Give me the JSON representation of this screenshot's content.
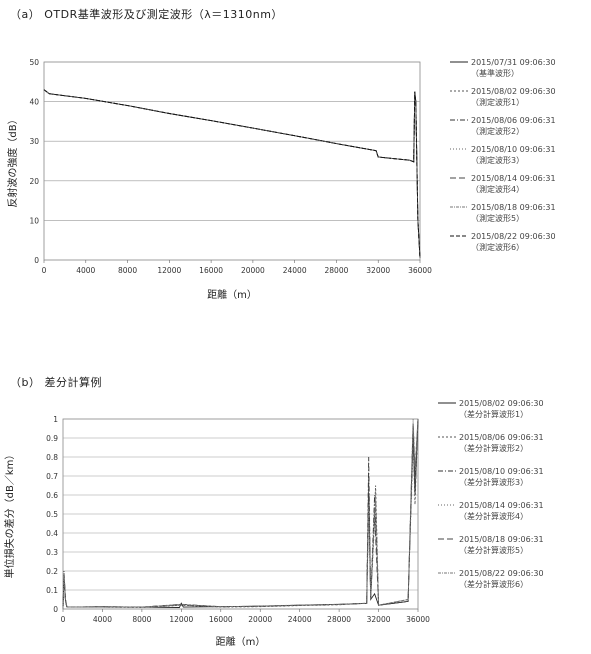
{
  "titles": {
    "a": "（a）  OTDR基準波形及び測定波形（λ＝1310nm）",
    "b": "（b）  差分計算例"
  },
  "chart_data": [
    {
      "type": "line",
      "xlabel": "距離（m）",
      "ylabel": "反射波の強度（dB）",
      "xlim": [
        0,
        36000
      ],
      "ylim": [
        0,
        50
      ],
      "x_ticks": [
        "0",
        "4000",
        "8000",
        "12000",
        "16000",
        "20000",
        "24000",
        "28000",
        "32000",
        "36000"
      ],
      "y_ticks": [
        "0",
        "10",
        "20",
        "30",
        "40",
        "50"
      ],
      "grid": true,
      "legend_position": "right",
      "series": [
        {
          "name": "2015/07/31 09:06:30（基準波形）",
          "points": [
            [
              0,
              43
            ],
            [
              500,
              42
            ],
            [
              4000,
              40.8
            ],
            [
              8000,
              39
            ],
            [
              12000,
              37
            ],
            [
              16000,
              35.2
            ],
            [
              20000,
              33.3
            ],
            [
              24000,
              31.4
            ],
            [
              28000,
              29.4
            ],
            [
              31800,
              27.6
            ],
            [
              32000,
              26
            ],
            [
              35000,
              25.2
            ],
            [
              35400,
              24.8
            ],
            [
              35500,
              42.5
            ],
            [
              35600,
              40
            ],
            [
              35800,
              10
            ],
            [
              36000,
              0.5
            ]
          ]
        },
        {
          "name": "2015/08/02 09:06:30（測定波形1）",
          "points": [
            [
              0,
              43
            ],
            [
              500,
              42
            ],
            [
              4000,
              40.8
            ],
            [
              8000,
              39
            ],
            [
              12000,
              37
            ],
            [
              16000,
              35.2
            ],
            [
              20000,
              33.3
            ],
            [
              24000,
              31.4
            ],
            [
              28000,
              29.4
            ],
            [
              31800,
              27.6
            ],
            [
              32000,
              26
            ],
            [
              35000,
              25.2
            ],
            [
              35400,
              24.8
            ],
            [
              35500,
              42.5
            ],
            [
              35600,
              40
            ],
            [
              35800,
              10
            ],
            [
              36000,
              0.5
            ]
          ]
        },
        {
          "name": "2015/08/06 09:06:31（測定波形2）",
          "points": [
            [
              0,
              43
            ],
            [
              500,
              42
            ],
            [
              4000,
              40.8
            ],
            [
              8000,
              39
            ],
            [
              12000,
              37
            ],
            [
              16000,
              35.2
            ],
            [
              20000,
              33.3
            ],
            [
              24000,
              31.4
            ],
            [
              28000,
              29.4
            ],
            [
              31800,
              27.6
            ],
            [
              32000,
              26
            ],
            [
              35000,
              25.2
            ],
            [
              35400,
              24.8
            ],
            [
              35500,
              42.5
            ],
            [
              35600,
              40
            ],
            [
              35800,
              10
            ],
            [
              36000,
              0.5
            ]
          ]
        },
        {
          "name": "2015/08/10 09:06:31（測定波形3）",
          "points": [
            [
              0,
              43
            ],
            [
              500,
              42
            ],
            [
              4000,
              40.8
            ],
            [
              8000,
              39
            ],
            [
              12000,
              37
            ],
            [
              16000,
              35.2
            ],
            [
              20000,
              33.3
            ],
            [
              24000,
              31.4
            ],
            [
              28000,
              29.4
            ],
            [
              31800,
              27.6
            ],
            [
              32000,
              26
            ],
            [
              35000,
              25.2
            ],
            [
              35400,
              24.8
            ],
            [
              35500,
              42.5
            ],
            [
              35600,
              40
            ],
            [
              35800,
              10
            ],
            [
              36000,
              0.5
            ]
          ]
        },
        {
          "name": "2015/08/14 09:06:31（測定波形4）",
          "points": [
            [
              0,
              43
            ],
            [
              500,
              42
            ],
            [
              4000,
              40.8
            ],
            [
              8000,
              39
            ],
            [
              12000,
              37
            ],
            [
              16000,
              35.2
            ],
            [
              20000,
              33.3
            ],
            [
              24000,
              31.4
            ],
            [
              28000,
              29.4
            ],
            [
              31800,
              27.6
            ],
            [
              32000,
              26
            ],
            [
              35000,
              25.2
            ],
            [
              35400,
              24.8
            ],
            [
              35500,
              42.5
            ],
            [
              35600,
              40
            ],
            [
              35800,
              10
            ],
            [
              36000,
              0.5
            ]
          ]
        },
        {
          "name": "2015/08/18 09:06:31（測定波形5）",
          "points": [
            [
              0,
              43
            ],
            [
              500,
              42
            ],
            [
              4000,
              40.8
            ],
            [
              8000,
              39
            ],
            [
              12000,
              37
            ],
            [
              16000,
              35.2
            ],
            [
              20000,
              33.3
            ],
            [
              24000,
              31.4
            ],
            [
              28000,
              29.4
            ],
            [
              31800,
              27.6
            ],
            [
              32000,
              26
            ],
            [
              35000,
              25.2
            ],
            [
              35400,
              24.8
            ],
            [
              35500,
              42.5
            ],
            [
              35600,
              40
            ],
            [
              35800,
              10
            ],
            [
              36000,
              0.5
            ]
          ]
        },
        {
          "name": "2015/08/22 09:06:30（測定波形6）",
          "points": [
            [
              0,
              43
            ],
            [
              500,
              42
            ],
            [
              4000,
              40.8
            ],
            [
              8000,
              39
            ],
            [
              12000,
              37
            ],
            [
              16000,
              35.2
            ],
            [
              20000,
              33.3
            ],
            [
              24000,
              31.4
            ],
            [
              28000,
              29.4
            ],
            [
              31800,
              27.6
            ],
            [
              32000,
              26
            ],
            [
              35000,
              25.2
            ],
            [
              35400,
              24.8
            ],
            [
              35500,
              42.5
            ],
            [
              35600,
              40
            ],
            [
              35800,
              10
            ],
            [
              36000,
              0.5
            ]
          ]
        }
      ]
    },
    {
      "type": "line",
      "xlabel": "距離（m）",
      "ylabel": "単位損失の差分（dB／km）",
      "xlim": [
        0,
        36000
      ],
      "ylim": [
        0,
        1
      ],
      "x_ticks": [
        "0",
        "4000",
        "8000",
        "12000",
        "16000",
        "20000",
        "24000",
        "28000",
        "32000",
        "36000"
      ],
      "y_ticks": [
        "0",
        "0.1",
        "0.2",
        "0.3",
        "0.4",
        "0.5",
        "0.6",
        "0.7",
        "0.8",
        "0.9",
        "1"
      ],
      "grid": true,
      "legend_position": "right",
      "series": [
        {
          "name": "2015/08/02 09:06:30（差分計算波形1）",
          "points": [
            [
              0,
              0
            ],
            [
              100,
              0.18
            ],
            [
              250,
              0.05
            ],
            [
              400,
              0.01
            ],
            [
              4000,
              0.012
            ],
            [
              8000,
              0.01
            ],
            [
              11800,
              0.008
            ],
            [
              12000,
              0.03
            ],
            [
              12200,
              0.01
            ],
            [
              16000,
              0.012
            ],
            [
              20000,
              0.015
            ],
            [
              24000,
              0.02
            ],
            [
              28000,
              0.025
            ],
            [
              30800,
              0.03
            ],
            [
              31000,
              0.6
            ],
            [
              31200,
              0.05
            ],
            [
              31600,
              0.08
            ],
            [
              32000,
              0.02
            ],
            [
              35000,
              0.04
            ],
            [
              35500,
              0.95
            ],
            [
              35700,
              0.6
            ],
            [
              36000,
              1
            ]
          ]
        },
        {
          "name": "2015/08/06 09:06:31（差分計算波形2）",
          "points": [
            [
              0,
              0
            ],
            [
              100,
              0.15
            ],
            [
              250,
              0.04
            ],
            [
              400,
              0.01
            ],
            [
              4000,
              0.01
            ],
            [
              8000,
              0.008
            ],
            [
              12000,
              0.02
            ],
            [
              16000,
              0.01
            ],
            [
              20000,
              0.012
            ],
            [
              24000,
              0.018
            ],
            [
              28000,
              0.022
            ],
            [
              30800,
              0.03
            ],
            [
              31000,
              0.7
            ],
            [
              31200,
              0.06
            ],
            [
              31700,
              0.65
            ],
            [
              32000,
              0.02
            ],
            [
              35000,
              0.05
            ],
            [
              35500,
              0.9
            ],
            [
              35700,
              0.55
            ],
            [
              36000,
              1
            ]
          ]
        },
        {
          "name": "2015/08/10 09:06:31（差分計算波形3）",
          "points": [
            [
              0,
              0
            ],
            [
              100,
              0.2
            ],
            [
              250,
              0.05
            ],
            [
              400,
              0.01
            ],
            [
              4000,
              0.012
            ],
            [
              8000,
              0.01
            ],
            [
              12000,
              0.025
            ],
            [
              16000,
              0.012
            ],
            [
              20000,
              0.014
            ],
            [
              24000,
              0.02
            ],
            [
              28000,
              0.024
            ],
            [
              30800,
              0.03
            ],
            [
              31000,
              0.8
            ],
            [
              31200,
              0.05
            ],
            [
              31600,
              0.6
            ],
            [
              32000,
              0.02
            ],
            [
              35000,
              0.04
            ],
            [
              35500,
              0.98
            ],
            [
              35700,
              0.7
            ],
            [
              36000,
              1
            ]
          ]
        },
        {
          "name": "2015/08/14 09:06:31（差分計算波形4）",
          "points": [
            [
              0,
              0
            ],
            [
              100,
              0.17
            ],
            [
              250,
              0.04
            ],
            [
              400,
              0.01
            ],
            [
              4000,
              0.01
            ],
            [
              8000,
              0.009
            ],
            [
              12000,
              0.02
            ],
            [
              16000,
              0.011
            ],
            [
              20000,
              0.013
            ],
            [
              24000,
              0.019
            ],
            [
              28000,
              0.023
            ],
            [
              30800,
              0.03
            ],
            [
              31000,
              0.5
            ],
            [
              31200,
              0.05
            ],
            [
              31700,
              0.55
            ],
            [
              32000,
              0.02
            ],
            [
              35000,
              0.05
            ],
            [
              35500,
              0.85
            ],
            [
              35700,
              0.65
            ],
            [
              36000,
              1
            ]
          ]
        },
        {
          "name": "2015/08/18 09:06:31（差分計算波形5）",
          "points": [
            [
              0,
              0
            ],
            [
              100,
              0.16
            ],
            [
              250,
              0.04
            ],
            [
              400,
              0.01
            ],
            [
              4000,
              0.011
            ],
            [
              8000,
              0.01
            ],
            [
              12000,
              0.022
            ],
            [
              16000,
              0.012
            ],
            [
              20000,
              0.014
            ],
            [
              24000,
              0.02
            ],
            [
              28000,
              0.024
            ],
            [
              30800,
              0.03
            ],
            [
              31000,
              0.65
            ],
            [
              31200,
              0.05
            ],
            [
              31600,
              0.5
            ],
            [
              32000,
              0.02
            ],
            [
              35000,
              0.04
            ],
            [
              35500,
              0.92
            ],
            [
              35700,
              0.6
            ],
            [
              36000,
              1
            ]
          ]
        },
        {
          "name": "2015/08/22 09:06:30（差分計算波形6）",
          "points": [
            [
              0,
              0
            ],
            [
              100,
              0.19
            ],
            [
              250,
              0.05
            ],
            [
              400,
              0.01
            ],
            [
              4000,
              0.012
            ],
            [
              8000,
              0.01
            ],
            [
              12000,
              0.024
            ],
            [
              16000,
              0.012
            ],
            [
              20000,
              0.015
            ],
            [
              24000,
              0.021
            ],
            [
              28000,
              0.025
            ],
            [
              30800,
              0.03
            ],
            [
              31000,
              0.55
            ],
            [
              31200,
              0.05
            ],
            [
              31700,
              0.62
            ],
            [
              32000,
              0.02
            ],
            [
              35000,
              0.05
            ],
            [
              35500,
              1
            ],
            [
              35700,
              0.75
            ],
            [
              36000,
              1
            ]
          ]
        }
      ]
    }
  ]
}
